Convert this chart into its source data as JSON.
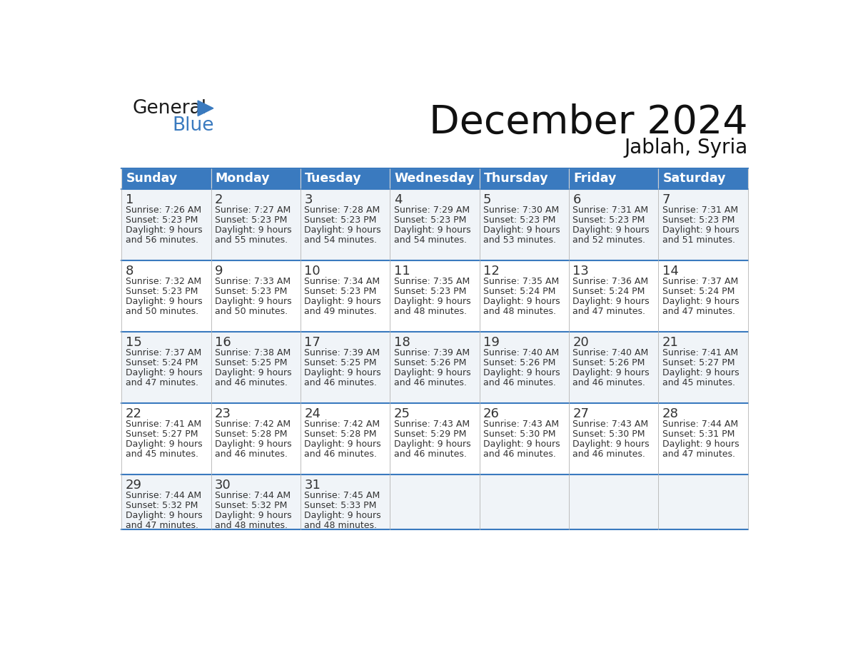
{
  "title": "December 2024",
  "subtitle": "Jablah, Syria",
  "days_of_week": [
    "Sunday",
    "Monday",
    "Tuesday",
    "Wednesday",
    "Thursday",
    "Friday",
    "Saturday"
  ],
  "header_bg": "#3A7ABF",
  "header_text": "#FFFFFF",
  "cell_bg_odd": "#F0F4F8",
  "cell_bg_even": "#FFFFFF",
  "text_color": "#333333",
  "border_color": "#BBBBBB",
  "line_color": "#3A7ABF",
  "calendar_data": [
    [
      {
        "day": 1,
        "sunrise": "7:26 AM",
        "sunset": "5:23 PM",
        "daylight_hours": 9,
        "daylight_min": 56
      },
      {
        "day": 2,
        "sunrise": "7:27 AM",
        "sunset": "5:23 PM",
        "daylight_hours": 9,
        "daylight_min": 55
      },
      {
        "day": 3,
        "sunrise": "7:28 AM",
        "sunset": "5:23 PM",
        "daylight_hours": 9,
        "daylight_min": 54
      },
      {
        "day": 4,
        "sunrise": "7:29 AM",
        "sunset": "5:23 PM",
        "daylight_hours": 9,
        "daylight_min": 54
      },
      {
        "day": 5,
        "sunrise": "7:30 AM",
        "sunset": "5:23 PM",
        "daylight_hours": 9,
        "daylight_min": 53
      },
      {
        "day": 6,
        "sunrise": "7:31 AM",
        "sunset": "5:23 PM",
        "daylight_hours": 9,
        "daylight_min": 52
      },
      {
        "day": 7,
        "sunrise": "7:31 AM",
        "sunset": "5:23 PM",
        "daylight_hours": 9,
        "daylight_min": 51
      }
    ],
    [
      {
        "day": 8,
        "sunrise": "7:32 AM",
        "sunset": "5:23 PM",
        "daylight_hours": 9,
        "daylight_min": 50
      },
      {
        "day": 9,
        "sunrise": "7:33 AM",
        "sunset": "5:23 PM",
        "daylight_hours": 9,
        "daylight_min": 50
      },
      {
        "day": 10,
        "sunrise": "7:34 AM",
        "sunset": "5:23 PM",
        "daylight_hours": 9,
        "daylight_min": 49
      },
      {
        "day": 11,
        "sunrise": "7:35 AM",
        "sunset": "5:23 PM",
        "daylight_hours": 9,
        "daylight_min": 48
      },
      {
        "day": 12,
        "sunrise": "7:35 AM",
        "sunset": "5:24 PM",
        "daylight_hours": 9,
        "daylight_min": 48
      },
      {
        "day": 13,
        "sunrise": "7:36 AM",
        "sunset": "5:24 PM",
        "daylight_hours": 9,
        "daylight_min": 47
      },
      {
        "day": 14,
        "sunrise": "7:37 AM",
        "sunset": "5:24 PM",
        "daylight_hours": 9,
        "daylight_min": 47
      }
    ],
    [
      {
        "day": 15,
        "sunrise": "7:37 AM",
        "sunset": "5:24 PM",
        "daylight_hours": 9,
        "daylight_min": 47
      },
      {
        "day": 16,
        "sunrise": "7:38 AM",
        "sunset": "5:25 PM",
        "daylight_hours": 9,
        "daylight_min": 46
      },
      {
        "day": 17,
        "sunrise": "7:39 AM",
        "sunset": "5:25 PM",
        "daylight_hours": 9,
        "daylight_min": 46
      },
      {
        "day": 18,
        "sunrise": "7:39 AM",
        "sunset": "5:26 PM",
        "daylight_hours": 9,
        "daylight_min": 46
      },
      {
        "day": 19,
        "sunrise": "7:40 AM",
        "sunset": "5:26 PM",
        "daylight_hours": 9,
        "daylight_min": 46
      },
      {
        "day": 20,
        "sunrise": "7:40 AM",
        "sunset": "5:26 PM",
        "daylight_hours": 9,
        "daylight_min": 46
      },
      {
        "day": 21,
        "sunrise": "7:41 AM",
        "sunset": "5:27 PM",
        "daylight_hours": 9,
        "daylight_min": 45
      }
    ],
    [
      {
        "day": 22,
        "sunrise": "7:41 AM",
        "sunset": "5:27 PM",
        "daylight_hours": 9,
        "daylight_min": 45
      },
      {
        "day": 23,
        "sunrise": "7:42 AM",
        "sunset": "5:28 PM",
        "daylight_hours": 9,
        "daylight_min": 46
      },
      {
        "day": 24,
        "sunrise": "7:42 AM",
        "sunset": "5:28 PM",
        "daylight_hours": 9,
        "daylight_min": 46
      },
      {
        "day": 25,
        "sunrise": "7:43 AM",
        "sunset": "5:29 PM",
        "daylight_hours": 9,
        "daylight_min": 46
      },
      {
        "day": 26,
        "sunrise": "7:43 AM",
        "sunset": "5:30 PM",
        "daylight_hours": 9,
        "daylight_min": 46
      },
      {
        "day": 27,
        "sunrise": "7:43 AM",
        "sunset": "5:30 PM",
        "daylight_hours": 9,
        "daylight_min": 46
      },
      {
        "day": 28,
        "sunrise": "7:44 AM",
        "sunset": "5:31 PM",
        "daylight_hours": 9,
        "daylight_min": 47
      }
    ],
    [
      {
        "day": 29,
        "sunrise": "7:44 AM",
        "sunset": "5:32 PM",
        "daylight_hours": 9,
        "daylight_min": 47
      },
      {
        "day": 30,
        "sunrise": "7:44 AM",
        "sunset": "5:32 PM",
        "daylight_hours": 9,
        "daylight_min": 48
      },
      {
        "day": 31,
        "sunrise": "7:45 AM",
        "sunset": "5:33 PM",
        "daylight_hours": 9,
        "daylight_min": 48
      },
      null,
      null,
      null,
      null
    ]
  ]
}
